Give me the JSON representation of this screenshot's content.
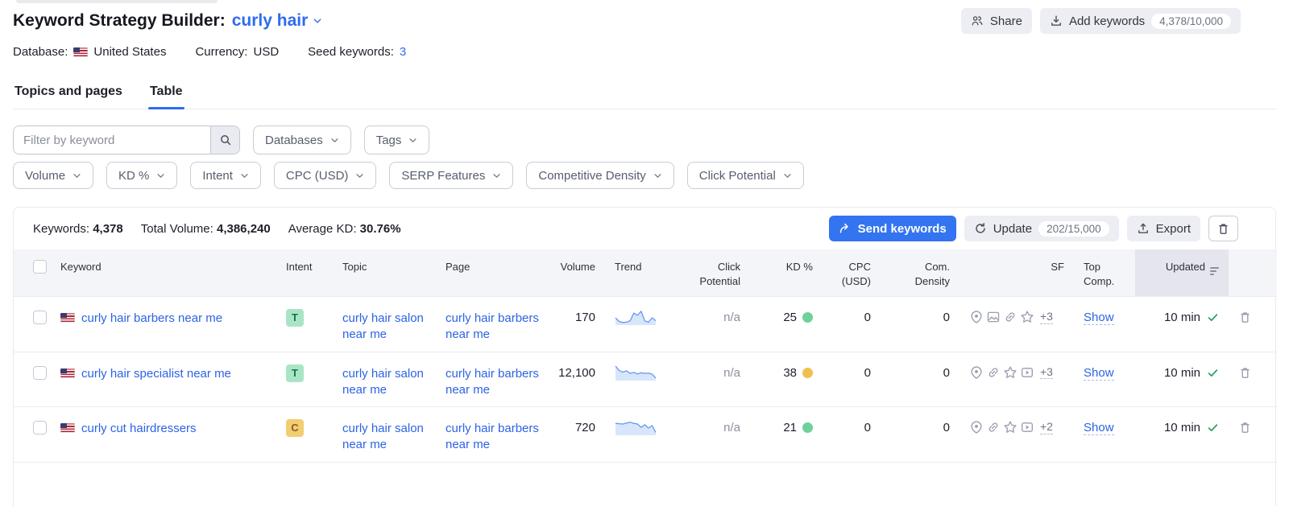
{
  "accent": "#2e6bf0",
  "header": {
    "title": "Keyword Strategy Builder:",
    "project": "curly hair",
    "share_label": "Share",
    "add_keywords_label": "Add keywords",
    "add_keywords_count": "4,378/10,000"
  },
  "meta": {
    "database_label": "Database:",
    "database_value": "United States",
    "currency_label": "Currency:",
    "currency_value": "USD",
    "seed_label": "Seed keywords:",
    "seed_value": "3"
  },
  "tabs": [
    {
      "label": "Topics and pages",
      "active": false
    },
    {
      "label": "Table",
      "active": true
    }
  ],
  "filters": {
    "keyword_placeholder": "Filter by keyword",
    "databases_label": "Databases",
    "tags_label": "Tags",
    "volume_label": "Volume",
    "kd_label": "KD %",
    "intent_label": "Intent",
    "cpc_label": "CPC (USD)",
    "serp_label": "SERP Features",
    "comp_density_label": "Competitive Density",
    "click_potential_label": "Click Potential"
  },
  "summary": {
    "keywords_label": "Keywords:",
    "keywords_value": "4,378",
    "volume_label": "Total Volume:",
    "volume_value": "4,386,240",
    "kd_label": "Average KD:",
    "kd_value": "30.76%",
    "send_label": "Send keywords",
    "update_label": "Update",
    "update_count": "202/15,000",
    "export_label": "Export"
  },
  "table": {
    "columns": [
      "Keyword",
      "Intent",
      "Topic",
      "Page",
      "Volume",
      "Trend",
      "Click Potential",
      "KD %",
      "CPC (USD)",
      "Com. Density",
      "SF",
      "Top Comp.",
      "Updated"
    ],
    "rows": [
      {
        "keyword": "curly hair barbers near me",
        "intent": "T",
        "intent_bg": "#a9e5c5",
        "intent_fg": "#12734c",
        "topic": "curly hair salon near me",
        "page": "curly hair barbers near me",
        "volume": "170",
        "trend": [
          0.5,
          0.25,
          0.18,
          0.2,
          0.3,
          0.82,
          0.68,
          0.95,
          0.28,
          0.2,
          0.5,
          0.3
        ],
        "click_potential": "n/a",
        "kd": "25",
        "kd_color": "#70d099",
        "cpc": "0",
        "com_density": "0",
        "sf_icons": [
          "location-pin-icon",
          "image-pack-icon",
          "link-icon",
          "star-icon"
        ],
        "sf_more": "+3",
        "top_comp": "Show",
        "updated": "10 min"
      },
      {
        "keyword": "curly hair specialist near me",
        "intent": "T",
        "intent_bg": "#a9e5c5",
        "intent_fg": "#12734c",
        "topic": "curly hair salon near me",
        "page": "curly hair barbers near me",
        "volume": "12,100",
        "trend": [
          1.0,
          0.7,
          0.58,
          0.68,
          0.5,
          0.56,
          0.46,
          0.54,
          0.5,
          0.52,
          0.44,
          0.18
        ],
        "click_potential": "n/a",
        "kd": "38",
        "kd_color": "#f0c04f",
        "cpc": "0",
        "com_density": "0",
        "sf_icons": [
          "location-pin-icon",
          "link-icon",
          "star-icon",
          "video-icon"
        ],
        "sf_more": "+3",
        "top_comp": "Show",
        "updated": "10 min"
      },
      {
        "keyword": "curly cut hairdressers",
        "intent": "C",
        "intent_bg": "#f2cd71",
        "intent_fg": "#8a5d20",
        "topic": "curly hair salon near me",
        "page": "curly hair barbers near me",
        "volume": "720",
        "trend": [
          0.82,
          0.8,
          0.78,
          0.85,
          0.9,
          0.82,
          0.78,
          0.55,
          0.72,
          0.5,
          0.66,
          0.2
        ],
        "click_potential": "n/a",
        "kd": "21",
        "kd_color": "#70d099",
        "cpc": "0",
        "com_density": "0",
        "sf_icons": [
          "location-pin-icon",
          "link-icon",
          "star-icon",
          "video-icon"
        ],
        "sf_more": "+2",
        "top_comp": "Show",
        "updated": "10 min"
      }
    ]
  }
}
